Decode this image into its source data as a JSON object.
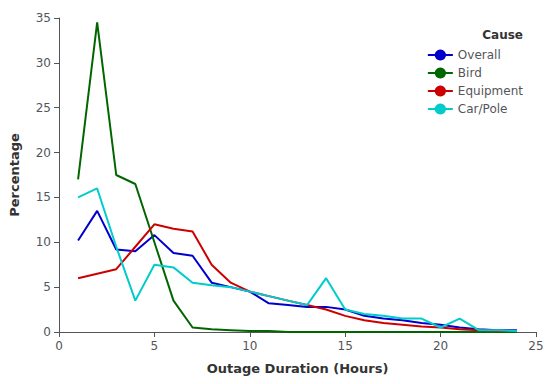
{
  "chart_data": {
    "type": "line",
    "xlabel": "Outage Duration (Hours)",
    "ylabel": "Percentage",
    "x": [
      1,
      2,
      3,
      4,
      5,
      6,
      7,
      8,
      9,
      10,
      11,
      12,
      13,
      14,
      15,
      16,
      17,
      18,
      19,
      20,
      21,
      22,
      23,
      24
    ],
    "series": [
      {
        "name": "Overall",
        "color": "#0000cc",
        "values": [
          10.2,
          13.5,
          9.2,
          9.0,
          10.8,
          8.8,
          8.5,
          5.5,
          5.0,
          4.5,
          3.2,
          3.0,
          2.8,
          2.8,
          2.5,
          1.8,
          1.5,
          1.3,
          1.0,
          0.8,
          0.5,
          0.3,
          0.2,
          0.2
        ]
      },
      {
        "name": "Bird",
        "color": "#006600",
        "values": [
          17.0,
          34.5,
          17.5,
          16.5,
          10.0,
          3.5,
          0.5,
          0.3,
          0.2,
          0.1,
          0.1,
          0.0,
          0.0,
          0.0,
          0.0,
          0.0,
          0.0,
          0.0,
          0.0,
          0.0,
          0.0,
          0.0,
          0.0,
          0.0
        ]
      },
      {
        "name": "Equipment",
        "color": "#cc0000",
        "values": [
          6.0,
          6.5,
          7.0,
          9.5,
          12.0,
          11.5,
          11.2,
          7.5,
          5.5,
          4.5,
          4.0,
          3.5,
          3.0,
          2.5,
          1.8,
          1.3,
          1.0,
          0.8,
          0.6,
          0.5,
          0.3,
          0.2,
          0.1,
          0.1
        ]
      },
      {
        "name": "Car/Pole",
        "color": "#00cccc",
        "values": [
          15.0,
          16.0,
          9.5,
          3.5,
          7.5,
          7.2,
          5.5,
          5.2,
          5.0,
          4.5,
          4.0,
          3.5,
          3.0,
          6.0,
          2.5,
          2.0,
          1.8,
          1.5,
          1.5,
          0.5,
          1.5,
          0.2,
          0.2,
          0.1
        ]
      }
    ],
    "xlim": [
      0,
      25
    ],
    "ylim": [
      0,
      35
    ],
    "xticks": [
      0,
      5,
      10,
      15,
      20,
      25
    ],
    "yticks": [
      0,
      5,
      10,
      15,
      20,
      25,
      30,
      35
    ],
    "grid": false,
    "legend": "upper right",
    "legend_title": "Cause"
  }
}
